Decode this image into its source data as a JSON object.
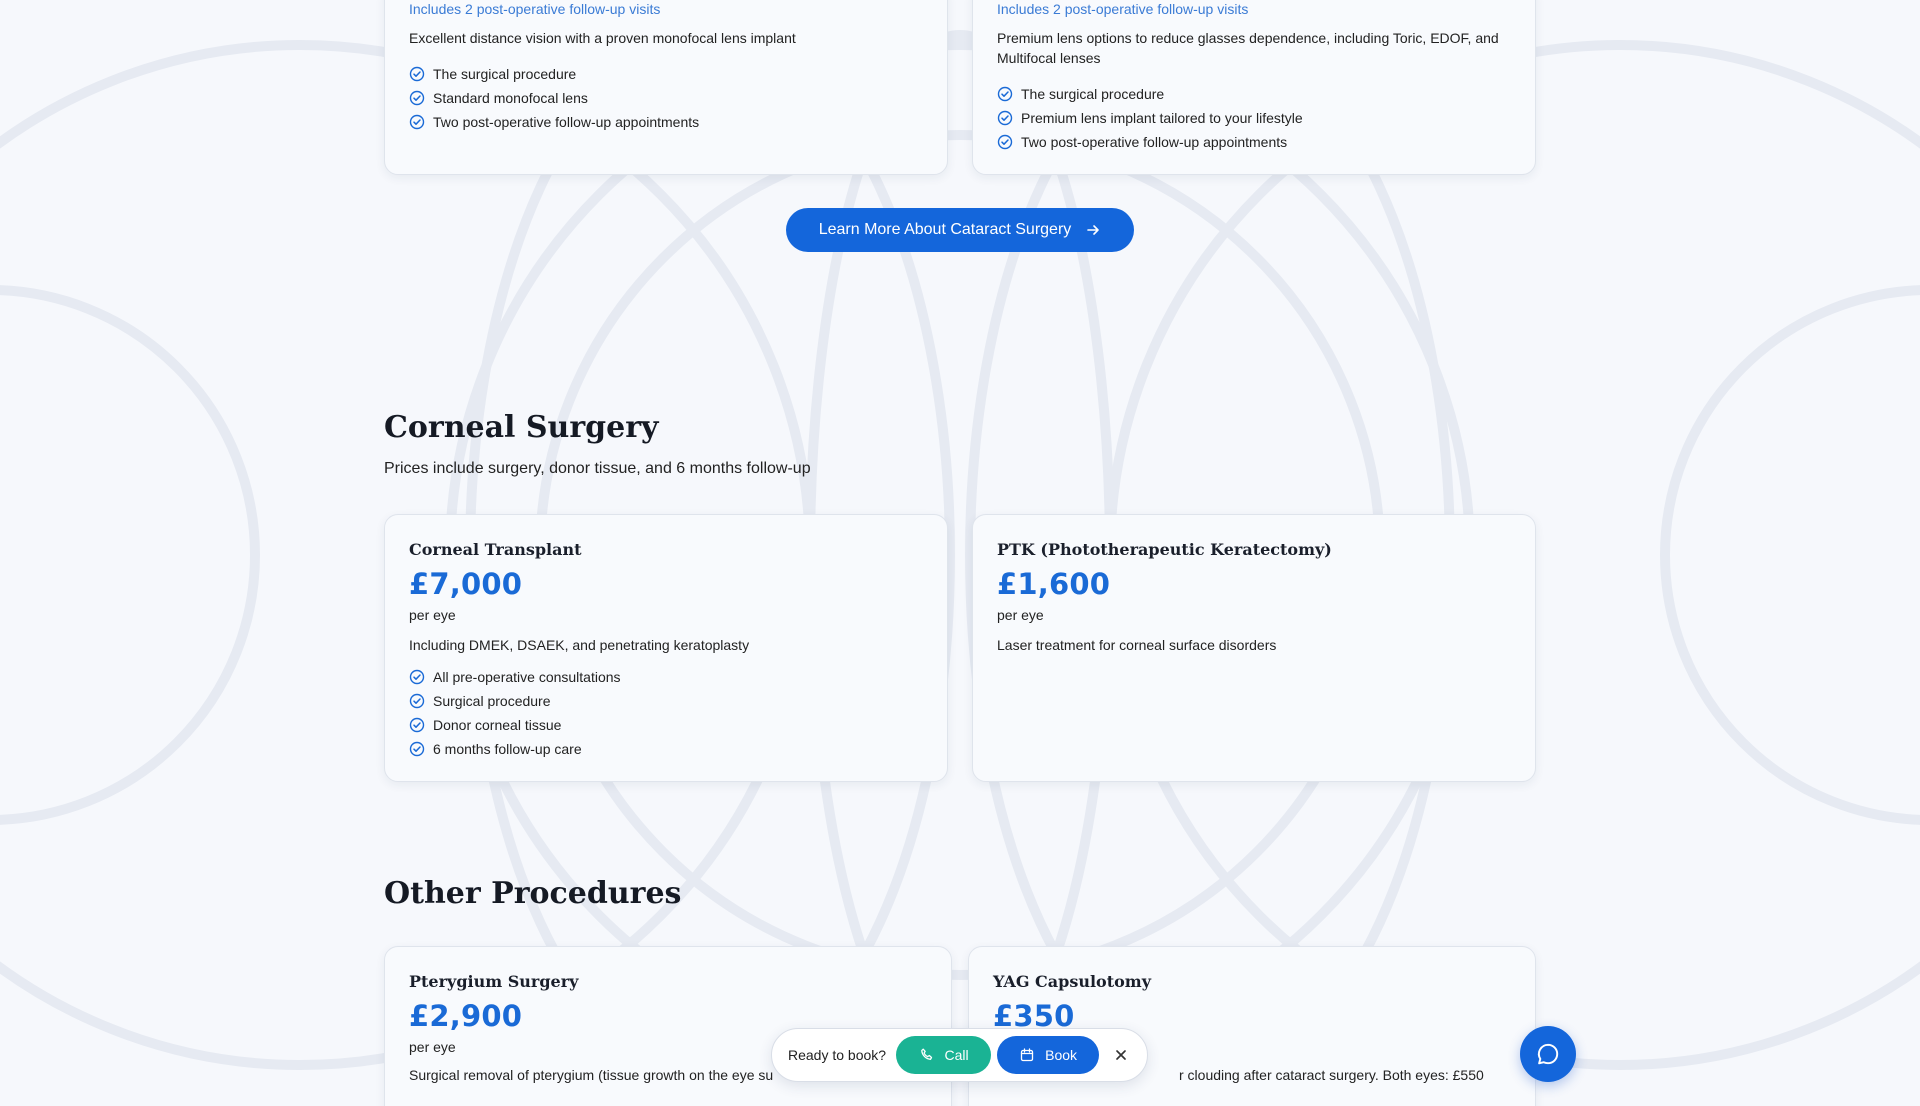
{
  "cataract": {
    "cards": [
      {
        "note": "Includes 2 post-operative follow-up visits",
        "description": "Excellent distance vision with a proven monofocal lens implant",
        "features": [
          "The surgical procedure",
          "Standard monofocal lens",
          "Two post-operative follow-up appointments"
        ]
      },
      {
        "note": "Includes 2 post-operative follow-up visits",
        "description": "Premium lens options to reduce glasses dependence, including Toric, EDOF, and Multifocal lenses",
        "features": [
          "The surgical procedure",
          "Premium lens implant tailored to your lifestyle",
          "Two post-operative follow-up appointments"
        ]
      }
    ],
    "learn_more_label": "Learn More About Cataract Surgery"
  },
  "corneal": {
    "title": "Corneal Surgery",
    "subtitle": "Prices include surgery, donor tissue, and 6 months follow-up",
    "cards": [
      {
        "title": "Corneal Transplant",
        "price": "£7,000",
        "unit": "per eye",
        "description": "Including DMEK, DSAEK, and penetrating keratoplasty",
        "features": [
          "All pre-operative consultations",
          "Surgical procedure",
          "Donor corneal tissue",
          "6 months follow-up care"
        ]
      },
      {
        "title": "PTK (Phototherapeutic Keratectomy)",
        "price": "£1,600",
        "unit": "per eye",
        "description": "Laser treatment for corneal surface disorders"
      }
    ]
  },
  "other": {
    "title": "Other Procedures",
    "cards": [
      {
        "title": "Pterygium Surgery",
        "price": "£2,900",
        "unit": "per eye",
        "description": "Surgical removal of pterygium (tissue growth on the eye su"
      },
      {
        "title": "YAG Capsulotomy",
        "price": "£350",
        "description": "r clouding after cataract surgery. Both eyes: £550"
      }
    ]
  },
  "booking_bar": {
    "prompt": "Ready to book?",
    "call_label": "Call",
    "book_label": "Book"
  },
  "colors": {
    "accent": "#1466db",
    "price": "#1a6ad6",
    "call": "#1ab394",
    "check": "#1a6ad6"
  },
  "icons": {
    "check": "check-circle-icon",
    "arrow": "arrow-right-icon",
    "phone": "phone-icon",
    "calendar": "calendar-icon",
    "close": "close-icon",
    "chat": "chat-bubble-icon"
  }
}
